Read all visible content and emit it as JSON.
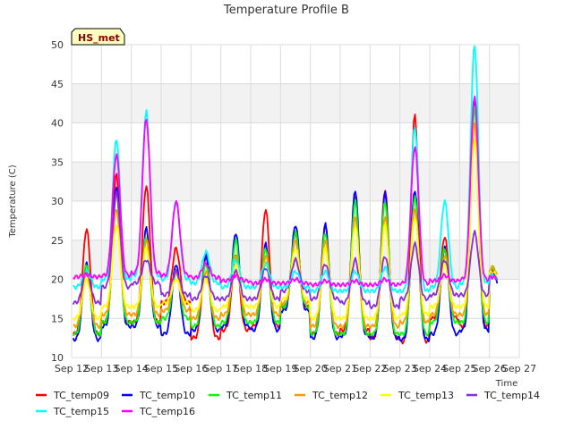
{
  "chart_data": {
    "type": "line",
    "title": "Temperature Profile B",
    "xlabel": "Time",
    "ylabel": "Temperature (C)",
    "badge": "HS_met",
    "ylim": [
      10,
      50
    ],
    "xlim": [
      12,
      27
    ],
    "y_ticks": [
      10,
      15,
      20,
      25,
      30,
      35,
      40,
      45,
      50
    ],
    "x_ticks": [
      12,
      13,
      14,
      15,
      16,
      17,
      18,
      19,
      20,
      21,
      22,
      23,
      24,
      25,
      26,
      27
    ],
    "x_tick_labels": [
      "Sep 12",
      "Sep 13",
      "Sep 14",
      "Sep 15",
      "Sep 16",
      "Sep 17",
      "Sep 18",
      "Sep 19",
      "Sep 20",
      "Sep 21",
      "Sep 22",
      "Sep 23",
      "Sep 24",
      "Sep 25",
      "Sep 26",
      "Sep 27"
    ],
    "shaded_bands": [
      [
        20,
        25
      ],
      [
        30,
        35
      ],
      [
        40,
        45
      ]
    ],
    "grid": true,
    "legend_position": "bottom",
    "day_centers": [
      12.5,
      13.5,
      14.5,
      15.5,
      16.5,
      17.5,
      18.5,
      19.5,
      20.5,
      21.5,
      22.5,
      23.5,
      24.5,
      25.5,
      26.1
    ],
    "series": [
      {
        "name": "TC_temp09",
        "color": "#ff0000",
        "mins": [
          13.0,
          14.5,
          14.5,
          17.0,
          12.5,
          13.5,
          14.0,
          16.5,
          13.0,
          13.5,
          12.5,
          12.0,
          15.0,
          14.0,
          19.0
        ],
        "maxs": [
          26.5,
          33.5,
          32.0,
          24.0,
          23.0,
          23.0,
          29.0,
          26.0,
          27.0,
          30.5,
          31.5,
          41.0,
          25.5,
          43.0,
          21.0
        ]
      },
      {
        "name": "TC_temp10",
        "color": "#0000ff",
        "mins": [
          12.3,
          14.0,
          14.0,
          13.0,
          13.5,
          14.0,
          13.5,
          16.0,
          12.5,
          12.8,
          12.5,
          12.3,
          13.0,
          13.5,
          18.5
        ],
        "maxs": [
          22.0,
          32.0,
          26.5,
          22.0,
          23.0,
          26.0,
          24.5,
          27.0,
          27.0,
          31.5,
          31.0,
          31.5,
          24.0,
          43.5,
          21.0
        ]
      },
      {
        "name": "TC_temp11",
        "color": "#00ff00",
        "mins": [
          13.0,
          14.5,
          14.5,
          15.0,
          14.0,
          14.5,
          14.5,
          16.5,
          13.0,
          13.0,
          13.0,
          13.0,
          14.5,
          14.5,
          19.0
        ],
        "maxs": [
          22.0,
          31.0,
          25.5,
          21.0,
          22.0,
          25.0,
          24.0,
          26.0,
          26.0,
          30.0,
          30.0,
          30.5,
          24.0,
          42.0,
          21.5
        ]
      },
      {
        "name": "TC_temp12",
        "color": "#ff9900",
        "mins": [
          14.0,
          15.5,
          15.5,
          16.0,
          15.0,
          15.5,
          15.5,
          17.0,
          14.0,
          14.0,
          14.0,
          14.5,
          15.5,
          15.5,
          19.5
        ],
        "maxs": [
          21.0,
          29.0,
          25.0,
          21.0,
          21.0,
          23.0,
          23.0,
          25.0,
          25.0,
          28.0,
          28.0,
          29.0,
          23.0,
          40.0,
          21.5
        ]
      },
      {
        "name": "TC_temp13",
        "color": "#ffff00",
        "mins": [
          15.0,
          16.5,
          16.5,
          17.0,
          16.0,
          16.5,
          16.5,
          17.5,
          15.0,
          15.0,
          15.0,
          15.5,
          16.5,
          16.5,
          19.5
        ],
        "maxs": [
          20.0,
          27.0,
          24.0,
          20.0,
          20.0,
          22.0,
          22.0,
          24.0,
          24.0,
          27.0,
          27.0,
          28.0,
          22.0,
          38.0,
          21.0
        ]
      },
      {
        "name": "TC_temp14",
        "color": "#8a2be2",
        "mins": [
          17.0,
          19.0,
          19.5,
          18.0,
          17.5,
          17.5,
          17.5,
          18.5,
          17.5,
          17.0,
          16.5,
          17.5,
          18.0,
          18.0,
          19.5
        ],
        "maxs": [
          21.0,
          31.0,
          22.5,
          21.0,
          20.5,
          21.0,
          21.5,
          22.5,
          22.0,
          22.5,
          23.0,
          24.5,
          22.5,
          26.0,
          20.5
        ]
      },
      {
        "name": "TC_temp15",
        "color": "#00ffff",
        "mins": [
          19.0,
          20.0,
          20.5,
          20.0,
          19.5,
          19.0,
          19.0,
          19.0,
          18.5,
          18.5,
          18.5,
          18.5,
          19.0,
          19.5,
          19.5
        ],
        "maxs": [
          21.0,
          38.0,
          41.5,
          30.0,
          23.5,
          22.5,
          22.0,
          21.0,
          21.0,
          21.0,
          21.5,
          39.5,
          30.0,
          50.0,
          20.5
        ]
      },
      {
        "name": "TC_temp16",
        "color": "#ff00ff",
        "mins": [
          20.3,
          20.5,
          20.8,
          20.5,
          20.2,
          19.8,
          19.5,
          19.5,
          19.3,
          19.3,
          19.3,
          19.5,
          19.8,
          20.0,
          20.0
        ],
        "maxs": [
          20.6,
          36.0,
          40.5,
          30.0,
          22.0,
          20.5,
          20.0,
          20.0,
          19.8,
          19.8,
          20.0,
          37.0,
          20.5,
          43.5,
          20.3
        ]
      }
    ]
  }
}
